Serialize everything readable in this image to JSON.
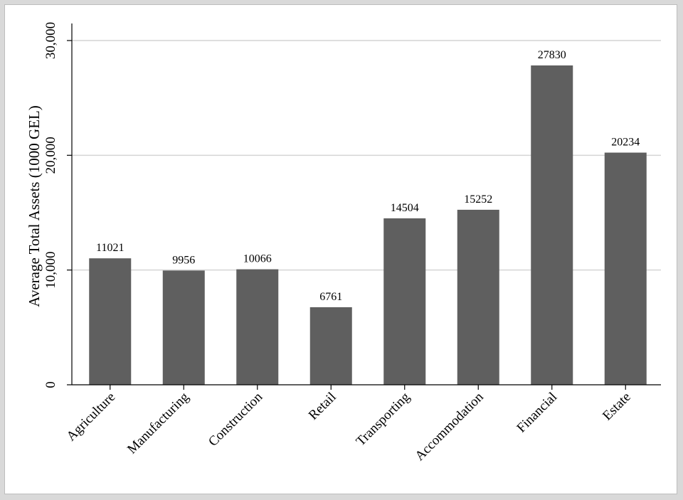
{
  "chart_data": {
    "type": "bar",
    "title": "",
    "xlabel": "",
    "ylabel": "Average Total Assets (1000 GEL)",
    "categories": [
      "Agriculture",
      "Manufacturing",
      "Construction",
      "Retail",
      "Transporting",
      "Accommodation",
      "Financial",
      "Estate"
    ],
    "values": [
      11021,
      9956,
      10066,
      6761,
      14504,
      15252,
      27830,
      20234
    ],
    "data_labels": [
      "11021",
      "9956",
      "10066",
      "6761",
      "14504",
      "15252",
      "27830",
      "20234"
    ],
    "ylim": [
      0,
      30000
    ],
    "yticks": [
      0,
      10000,
      20000,
      30000
    ],
    "ytick_labels": [
      "0",
      "10,000",
      "20,000",
      "30,000"
    ],
    "grid": true,
    "legend": "none",
    "bar_color": "#5f5f5f",
    "grid_color": "#d4d4d4"
  }
}
